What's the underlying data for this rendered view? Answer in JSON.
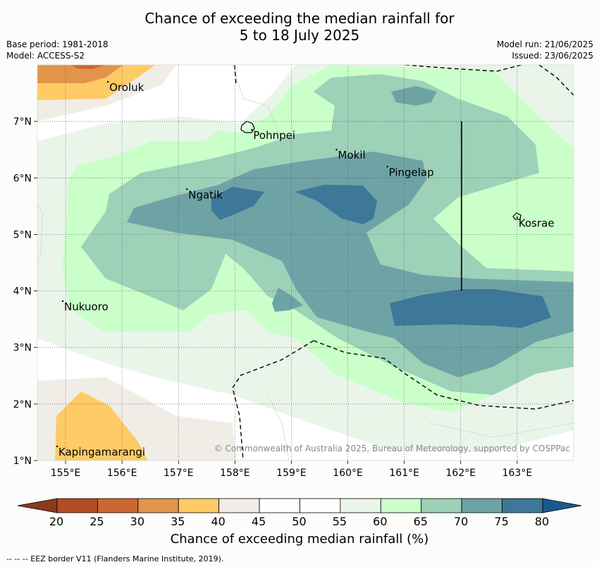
{
  "title": {
    "line1": "Chance of exceeding the median rainfall for",
    "line2": "5 to 18 July 2025"
  },
  "meta": {
    "base_period": "Base period: 1981-2018",
    "model": "Model: ACCESS-S2",
    "model_run": "Model run: 21/06/2025",
    "issued": "Issued: 23/06/2025"
  },
  "map": {
    "lon_range": [
      154.5,
      164.0
    ],
    "lat_range": [
      1.0,
      8.0
    ],
    "x_ticks": [
      "155°E",
      "156°E",
      "157°E",
      "158°E",
      "159°E",
      "160°E",
      "161°E",
      "162°E",
      "163°E"
    ],
    "y_ticks": [
      "1°N",
      "2°N",
      "3°N",
      "4°N",
      "5°N",
      "6°N",
      "7°N"
    ],
    "places": [
      {
        "name": "Oroluk",
        "lon": 155.75,
        "lat": 7.7
      },
      {
        "name": "Pohnpei",
        "lon": 158.3,
        "lat": 6.85
      },
      {
        "name": "Mokil",
        "lon": 159.8,
        "lat": 6.5
      },
      {
        "name": "Pingelap",
        "lon": 160.7,
        "lat": 6.2
      },
      {
        "name": "Ngatik",
        "lon": 157.15,
        "lat": 5.8
      },
      {
        "name": "Kosrae",
        "lon": 163.0,
        "lat": 5.3
      },
      {
        "name": "Nukuoro",
        "lon": 154.95,
        "lat": 3.82
      },
      {
        "name": "Kapingamarangi",
        "lon": 154.85,
        "lat": 1.25
      }
    ],
    "copyright": "© Commonwealth of Australia 2025, Bureau of Meteorology, supported by COSPPac",
    "gridlines": true
  },
  "colorbar": {
    "title": "Chance of exceeding median rainfall (%)",
    "ticks": [
      "20",
      "25",
      "30",
      "35",
      "40",
      "45",
      "50",
      "55",
      "60",
      "65",
      "70",
      "75",
      "80"
    ],
    "under_color": "#8b3a1c",
    "over_color": "#1b5a8c",
    "colors": [
      "#b44c26",
      "#cc6733",
      "#e2954a",
      "#fecb66",
      "#f0ede7",
      "#ffffff",
      "#ffffff",
      "#eaf5ea",
      "#caffca",
      "#9dd1b8",
      "#6ea3a6",
      "#3e7898"
    ]
  },
  "footer": "--  --  -- EEZ border V11 (Flanders Marine Institute, 2019)."
}
